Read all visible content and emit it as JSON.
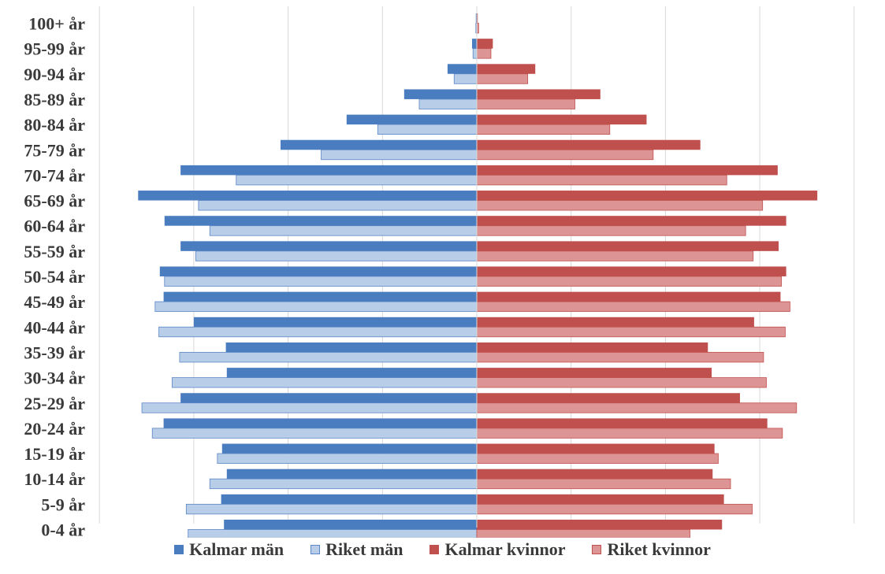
{
  "chart_data": {
    "type": "bar",
    "orientation": "horizontal",
    "layout": "population-pyramid",
    "categories": [
      "0-4 år",
      "5-9 år",
      "10-14 år",
      "15-19 år",
      "20-24 år",
      "25-29 år",
      "30-34 år",
      "35-39 år",
      "40-44 år",
      "45-49 år",
      "50-54 år",
      "55-59 år",
      "60-64 år",
      "65-69 år",
      "70-74 år",
      "75-79 år",
      "80-84 år",
      "85-89 år",
      "90-94 år",
      "95-99 år",
      "100+ år"
    ],
    "series": [
      {
        "name": "Kalmar män",
        "side": "left",
        "color": "#4a7cc0",
        "values": [
          2.68,
          2.71,
          2.65,
          2.7,
          3.32,
          3.14,
          2.65,
          2.66,
          3.0,
          3.32,
          3.36,
          3.14,
          3.31,
          3.59,
          3.14,
          2.08,
          1.38,
          0.77,
          0.31,
          0.05,
          0.01
        ]
      },
      {
        "name": "Riket män",
        "side": "left",
        "color": "#b8cde8",
        "values": [
          3.06,
          3.08,
          2.83,
          2.75,
          3.44,
          3.55,
          3.23,
          3.15,
          3.37,
          3.41,
          3.31,
          2.98,
          2.83,
          2.95,
          2.55,
          1.65,
          1.05,
          0.61,
          0.24,
          0.04,
          0.01
        ]
      },
      {
        "name": "Kalmar kvinnor",
        "side": "right",
        "color": "#c0504d",
        "values": [
          2.6,
          2.62,
          2.5,
          2.52,
          3.08,
          2.79,
          2.49,
          2.45,
          2.94,
          3.22,
          3.28,
          3.2,
          3.28,
          3.61,
          3.19,
          2.37,
          1.8,
          1.31,
          0.62,
          0.17,
          0.01
        ]
      },
      {
        "name": "Riket kvinnor",
        "side": "right",
        "color": "#dc9594",
        "values": [
          2.26,
          2.92,
          2.69,
          2.56,
          3.24,
          3.39,
          3.07,
          3.04,
          3.27,
          3.32,
          3.23,
          2.93,
          2.85,
          3.03,
          2.65,
          1.87,
          1.41,
          1.04,
          0.54,
          0.15,
          0.02
        ]
      }
    ],
    "xlim": [
      -4,
      4
    ],
    "grid": true,
    "legend": "bottom",
    "title": "",
    "xlabel": "",
    "ylabel": ""
  }
}
